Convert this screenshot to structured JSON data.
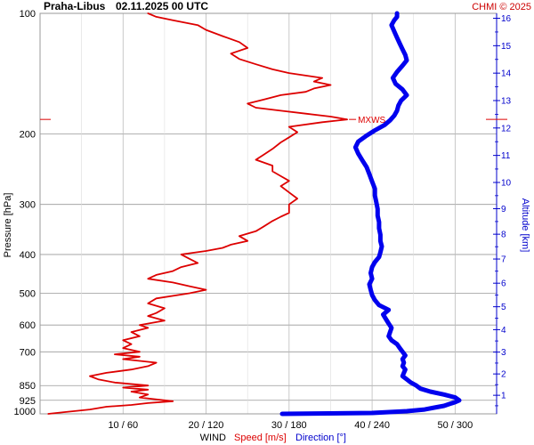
{
  "header": {
    "station": "Praha-Libus",
    "datetime": "02.11.2025 00 UTC",
    "copyright": "CHMI © 2025"
  },
  "chart_data": {
    "type": "line",
    "pressure_axis": {
      "label": "Pressure [hPa]",
      "scale": "log",
      "range": [
        1000,
        100
      ],
      "ticks": [
        100,
        200,
        300,
        400,
        500,
        600,
        700,
        850,
        925,
        1000
      ]
    },
    "altitude_axis": {
      "label": "Altitude [km]",
      "ticks": [
        1,
        2,
        3,
        4,
        5,
        6,
        7,
        8,
        9,
        10,
        11,
        12,
        13,
        14,
        15,
        16
      ]
    },
    "x_axis": {
      "title": "WIND",
      "speed_label": "Speed [m/s]",
      "direction_label": "Direction [°]",
      "speed_range": [
        0,
        55
      ],
      "direction_range": [
        0,
        330
      ],
      "tick_labels": [
        "10 / 60",
        "20 / 120",
        "30 / 180",
        "40 / 240",
        "50 / 300"
      ]
    },
    "grid": true,
    "mxws": {
      "label": "MXWS",
      "pressure": 184,
      "speed": 37
    },
    "series": [
      {
        "name": "Speed [m/s]",
        "color": "#dd0000",
        "points": [
          [
            1000,
            1
          ],
          [
            990,
            3
          ],
          [
            975,
            6
          ],
          [
            960,
            8
          ],
          [
            950,
            11
          ],
          [
            940,
            13
          ],
          [
            930,
            16
          ],
          [
            925,
            15
          ],
          [
            910,
            12
          ],
          [
            895,
            13
          ],
          [
            880,
            11
          ],
          [
            870,
            13
          ],
          [
            860,
            10
          ],
          [
            850,
            13
          ],
          [
            835,
            9
          ],
          [
            820,
            7
          ],
          [
            805,
            6
          ],
          [
            790,
            8
          ],
          [
            775,
            11
          ],
          [
            760,
            13
          ],
          [
            745,
            14
          ],
          [
            730,
            10
          ],
          [
            720,
            12
          ],
          [
            710,
            9
          ],
          [
            700,
            12
          ],
          [
            685,
            10
          ],
          [
            670,
            11
          ],
          [
            655,
            10
          ],
          [
            640,
            12
          ],
          [
            625,
            11
          ],
          [
            610,
            13
          ],
          [
            600,
            12
          ],
          [
            585,
            15
          ],
          [
            570,
            13
          ],
          [
            560,
            14
          ],
          [
            545,
            15
          ],
          [
            530,
            13
          ],
          [
            515,
            14
          ],
          [
            500,
            18
          ],
          [
            490,
            20
          ],
          [
            480,
            18
          ],
          [
            470,
            16
          ],
          [
            460,
            13
          ],
          [
            450,
            14
          ],
          [
            440,
            16
          ],
          [
            430,
            17
          ],
          [
            420,
            19
          ],
          [
            410,
            18
          ],
          [
            400,
            17
          ],
          [
            392,
            20
          ],
          [
            385,
            22
          ],
          [
            378,
            23
          ],
          [
            370,
            25
          ],
          [
            360,
            24
          ],
          [
            350,
            26
          ],
          [
            340,
            27
          ],
          [
            330,
            28
          ],
          [
            322,
            29
          ],
          [
            315,
            30
          ],
          [
            308,
            30
          ],
          [
            300,
            30
          ],
          [
            290,
            31
          ],
          [
            280,
            30
          ],
          [
            270,
            29
          ],
          [
            262,
            30
          ],
          [
            255,
            29
          ],
          [
            248,
            28
          ],
          [
            240,
            28
          ],
          [
            232,
            26
          ],
          [
            225,
            27
          ],
          [
            218,
            28
          ],
          [
            210,
            29
          ],
          [
            204,
            30
          ],
          [
            198,
            31
          ],
          [
            192,
            30
          ],
          [
            187,
            34
          ],
          [
            184,
            37
          ],
          [
            181,
            35
          ],
          [
            178,
            32
          ],
          [
            175,
            29
          ],
          [
            172,
            26
          ],
          [
            168,
            25
          ],
          [
            164,
            27
          ],
          [
            160,
            29
          ],
          [
            157,
            32
          ],
          [
            154,
            33
          ],
          [
            151,
            35
          ],
          [
            148,
            33
          ],
          [
            145,
            34
          ],
          [
            141,
            30
          ],
          [
            138,
            28
          ],
          [
            134,
            26
          ],
          [
            130,
            24
          ],
          [
            126,
            23
          ],
          [
            122,
            25
          ],
          [
            118,
            24
          ],
          [
            114,
            22
          ],
          [
            110,
            20
          ],
          [
            107,
            19
          ],
          [
            104,
            16
          ],
          [
            102,
            14
          ],
          [
            100,
            13
          ]
        ]
      },
      {
        "name": "Direction [°]",
        "color": "#0000ee",
        "points": [
          [
            1000,
            175
          ],
          [
            995,
            240
          ],
          [
            985,
            265
          ],
          [
            975,
            278
          ],
          [
            965,
            285
          ],
          [
            955,
            292
          ],
          [
            945,
            296
          ],
          [
            935,
            300
          ],
          [
            925,
            303
          ],
          [
            910,
            300
          ],
          [
            895,
            292
          ],
          [
            880,
            282
          ],
          [
            865,
            275
          ],
          [
            850,
            272
          ],
          [
            835,
            268
          ],
          [
            820,
            265
          ],
          [
            805,
            262
          ],
          [
            790,
            263
          ],
          [
            775,
            264
          ],
          [
            760,
            262
          ],
          [
            745,
            263
          ],
          [
            730,
            262
          ],
          [
            715,
            264
          ],
          [
            700,
            262
          ],
          [
            685,
            260
          ],
          [
            670,
            258
          ],
          [
            655,
            254
          ],
          [
            640,
            252
          ],
          [
            625,
            253
          ],
          [
            610,
            254
          ],
          [
            595,
            252
          ],
          [
            580,
            250
          ],
          [
            565,
            248
          ],
          [
            550,
            252
          ],
          [
            535,
            245
          ],
          [
            520,
            242
          ],
          [
            505,
            240
          ],
          [
            490,
            239
          ],
          [
            475,
            238
          ],
          [
            460,
            240
          ],
          [
            445,
            239
          ],
          [
            430,
            240
          ],
          [
            418,
            242
          ],
          [
            406,
            245
          ],
          [
            395,
            246
          ],
          [
            382,
            247
          ],
          [
            370,
            246
          ],
          [
            357,
            246
          ],
          [
            344,
            245
          ],
          [
            332,
            245
          ],
          [
            320,
            244
          ],
          [
            308,
            244
          ],
          [
            296,
            243
          ],
          [
            285,
            242
          ],
          [
            274,
            242
          ],
          [
            263,
            240
          ],
          [
            252,
            238
          ],
          [
            242,
            236
          ],
          [
            233,
            233
          ],
          [
            224,
            230
          ],
          [
            216,
            228
          ],
          [
            209,
            230
          ],
          [
            202,
            236
          ],
          [
            196,
            242
          ],
          [
            190,
            249
          ],
          [
            185,
            253
          ],
          [
            180,
            256
          ],
          [
            175,
            258
          ],
          [
            170,
            259
          ],
          [
            165,
            261
          ],
          [
            160,
            265
          ],
          [
            155,
            262
          ],
          [
            150,
            257
          ],
          [
            145,
            255
          ],
          [
            140,
            258
          ],
          [
            135,
            262
          ],
          [
            131,
            265
          ],
          [
            127,
            264
          ],
          [
            123,
            262
          ],
          [
            119,
            260
          ],
          [
            115,
            258
          ],
          [
            111,
            256
          ],
          [
            107,
            254
          ],
          [
            104,
            256
          ],
          [
            102,
            258
          ],
          [
            100,
            258
          ]
        ]
      }
    ]
  }
}
